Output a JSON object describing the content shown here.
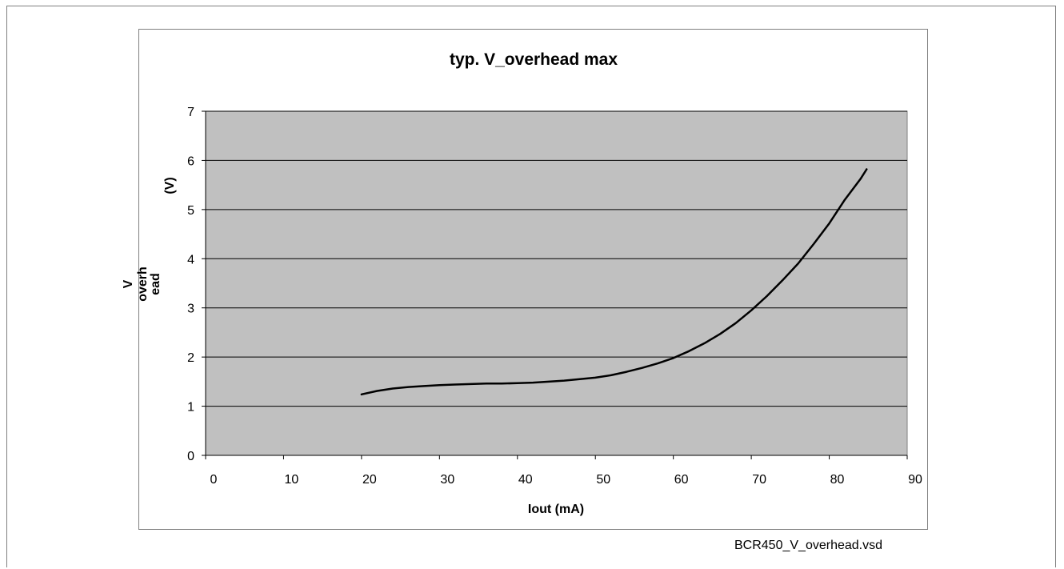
{
  "file_label": "BCR450_V_overhead.vsd",
  "colors": {
    "plot_bg": "#c0c0c0",
    "line": "#000000",
    "grid": "#000000"
  },
  "chart_data": {
    "type": "line",
    "title": "typ. V_overhead max",
    "xlabel": "Iout (mA)",
    "ylabel_lines": [
      "V",
      "overh",
      "ead",
      "(V)"
    ],
    "xlim": [
      0,
      90
    ],
    "ylim": [
      0,
      7
    ],
    "x_ticks": [
      0,
      10,
      20,
      30,
      40,
      50,
      60,
      70,
      80,
      90
    ],
    "y_ticks": [
      0,
      1,
      2,
      3,
      4,
      5,
      6,
      7
    ],
    "grid": "horizontal",
    "legend": "none",
    "series": [
      {
        "x": [
          20,
          22,
          24,
          26,
          28,
          30,
          32,
          34,
          36,
          38,
          40,
          42,
          44,
          46,
          48,
          50,
          52,
          54,
          56,
          58,
          60,
          62,
          64,
          66,
          68,
          70,
          72,
          74,
          76,
          78,
          80,
          82,
          84,
          84.8
        ],
        "y": [
          1.24,
          1.31,
          1.36,
          1.39,
          1.41,
          1.43,
          1.44,
          1.45,
          1.46,
          1.46,
          1.47,
          1.48,
          1.5,
          1.52,
          1.55,
          1.58,
          1.63,
          1.7,
          1.78,
          1.87,
          1.98,
          2.12,
          2.28,
          2.47,
          2.69,
          2.95,
          3.24,
          3.56,
          3.9,
          4.3,
          4.72,
          5.2,
          5.62,
          5.82
        ]
      }
    ]
  }
}
